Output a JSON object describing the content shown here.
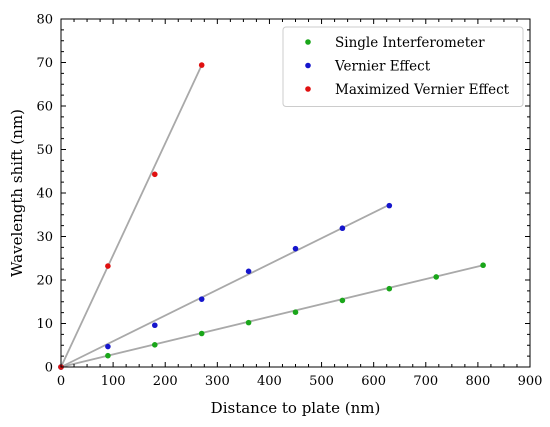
{
  "chart_data": {
    "type": "scatter",
    "xlabel": "Distance to plate (nm)",
    "ylabel": "Wavelength shift (nm)",
    "xlim": [
      0,
      900
    ],
    "ylim": [
      0,
      80
    ],
    "xticks": [
      0,
      100,
      200,
      300,
      400,
      500,
      600,
      700,
      800,
      900
    ],
    "yticks": [
      0,
      10,
      20,
      30,
      40,
      50,
      60,
      70,
      80
    ],
    "grid": false,
    "legend_position": "top-right",
    "fit_line_color": "#a9a9a9",
    "series": [
      {
        "name": "Single Interferometer",
        "color": "#1aa61a",
        "x": [
          0,
          90,
          180,
          270,
          360,
          450,
          540,
          630,
          720,
          810
        ],
        "y": [
          0,
          2.6,
          5.1,
          7.7,
          10.2,
          12.6,
          15.3,
          18.0,
          20.7,
          23.4
        ],
        "fit": {
          "x": [
            0,
            810
          ],
          "y": [
            0,
            23.4
          ]
        }
      },
      {
        "name": "Vernier Effect",
        "color": "#1515cc",
        "x": [
          0,
          90,
          180,
          270,
          360,
          450,
          540,
          630
        ],
        "y": [
          0,
          4.7,
          9.6,
          15.6,
          22.0,
          27.2,
          31.9,
          37.1
        ],
        "fit": {
          "x": [
            0,
            630
          ],
          "y": [
            0,
            37.3
          ]
        }
      },
      {
        "name": "Maximized Vernier Effect",
        "color": "#e01010",
        "x": [
          0,
          90,
          180,
          270
        ],
        "y": [
          0,
          23.2,
          44.3,
          69.4
        ],
        "fit": {
          "x": [
            0,
            270
          ],
          "y": [
            0,
            69.4
          ]
        }
      }
    ]
  }
}
